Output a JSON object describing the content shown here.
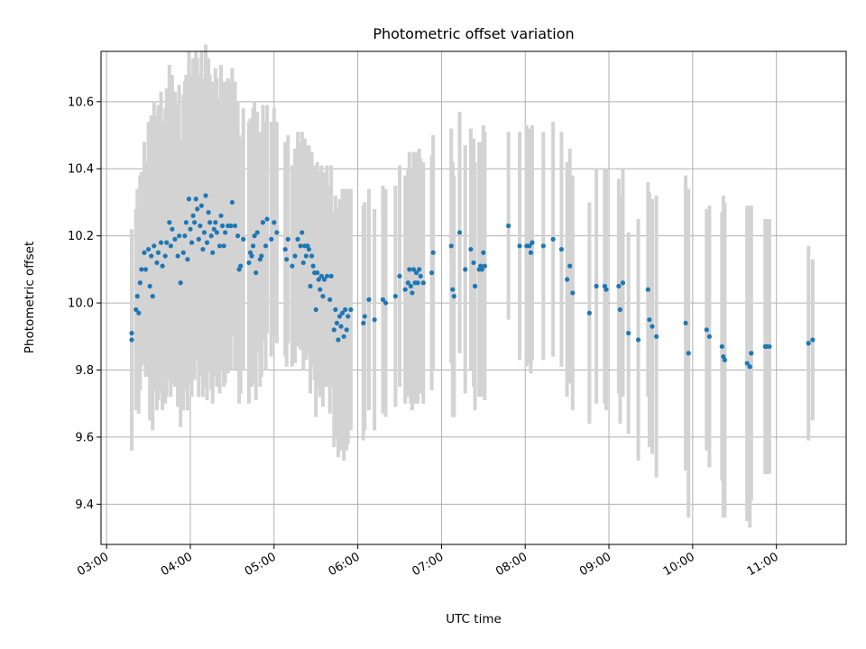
{
  "chart_data": {
    "type": "scatter",
    "title": "Photometric offset variation",
    "xlabel": "UTC time",
    "ylabel": "Photometric offset",
    "x_unit": "UTC time of day",
    "xlim": [
      "02:56",
      "11:50"
    ],
    "ylim": [
      9.28,
      10.75
    ],
    "x_ticks": [
      "03:00",
      "04:00",
      "05:00",
      "06:00",
      "07:00",
      "08:00",
      "09:00",
      "10:00",
      "11:00"
    ],
    "y_ticks": [
      9.4,
      9.6,
      9.8,
      10.0,
      10.2,
      10.4,
      10.6
    ],
    "y_tick_labels": [
      "9.4",
      "9.6",
      "9.8",
      "10.0",
      "10.2",
      "10.4",
      "10.6"
    ],
    "x_tick_rotation_deg": 30,
    "grid": true,
    "colors": {
      "points": "#1f77b4",
      "errorbars": "#d3d3d3",
      "grid": "#b0b0b0"
    },
    "series": [
      {
        "columns": [
          "time",
          "offset",
          "error"
        ],
        "points": [
          [
            "03:18",
            9.89,
            0.33
          ],
          [
            "03:18",
            9.91,
            0.3
          ],
          [
            "03:21",
            9.98,
            0.3
          ],
          [
            "03:22",
            10.02,
            0.32
          ],
          [
            "03:23",
            9.97,
            0.3
          ],
          [
            "03:24",
            10.06,
            0.32
          ],
          [
            "03:25",
            10.1,
            0.29
          ],
          [
            "03:27",
            10.15,
            0.33
          ],
          [
            "03:28",
            10.1,
            0.32
          ],
          [
            "03:30",
            10.16,
            0.38
          ],
          [
            "03:31",
            10.05,
            0.4
          ],
          [
            "03:32",
            10.14,
            0.42
          ],
          [
            "03:33",
            10.02,
            0.4
          ],
          [
            "03:34",
            10.17,
            0.43
          ],
          [
            "03:36",
            10.12,
            0.44
          ],
          [
            "03:37",
            10.15,
            0.44
          ],
          [
            "03:39",
            10.18,
            0.45
          ],
          [
            "03:40",
            10.11,
            0.43
          ],
          [
            "03:42",
            10.14,
            0.44
          ],
          [
            "03:43",
            10.18,
            0.46
          ],
          [
            "03:45",
            10.24,
            0.47
          ],
          [
            "03:46",
            10.17,
            0.45
          ],
          [
            "03:47",
            10.22,
            0.46
          ],
          [
            "03:49",
            10.19,
            0.44
          ],
          [
            "03:51",
            10.14,
            0.45
          ],
          [
            "03:52",
            10.2,
            0.45
          ],
          [
            "03:53",
            10.06,
            0.43
          ],
          [
            "03:55",
            10.15,
            0.47
          ],
          [
            "03:56",
            10.2,
            0.46
          ],
          [
            "03:57",
            10.24,
            0.44
          ],
          [
            "03:58",
            10.13,
            0.45
          ],
          [
            "03:59",
            10.31,
            0.44
          ],
          [
            "04:00",
            10.22,
            0.46
          ],
          [
            "04:01",
            10.18,
            0.46
          ],
          [
            "04:02",
            10.26,
            0.47
          ],
          [
            "04:03",
            10.24,
            0.47
          ],
          [
            "04:04",
            10.31,
            0.44
          ],
          [
            "04:05",
            10.28,
            0.45
          ],
          [
            "04:06",
            10.19,
            0.47
          ],
          [
            "04:07",
            10.23,
            0.45
          ],
          [
            "04:08",
            10.29,
            0.46
          ],
          [
            "04:09",
            10.16,
            0.44
          ],
          [
            "04:10",
            10.21,
            0.46
          ],
          [
            "04:11",
            10.32,
            0.45
          ],
          [
            "04:12",
            10.18,
            0.47
          ],
          [
            "04:13",
            10.27,
            0.46
          ],
          [
            "04:14",
            10.24,
            0.44
          ],
          [
            "04:15",
            10.2,
            0.46
          ],
          [
            "04:16",
            10.15,
            0.45
          ],
          [
            "04:17",
            10.22,
            0.44
          ],
          [
            "04:18",
            10.24,
            0.46
          ],
          [
            "04:19",
            10.21,
            0.46
          ],
          [
            "04:21",
            10.17,
            0.44
          ],
          [
            "04:22",
            10.26,
            0.45
          ],
          [
            "04:23",
            10.23,
            0.43
          ],
          [
            "04:24",
            10.17,
            0.42
          ],
          [
            "04:25",
            10.21,
            0.45
          ],
          [
            "04:27",
            10.23,
            0.44
          ],
          [
            "04:29",
            10.23,
            0.43
          ],
          [
            "04:30",
            10.3,
            0.4
          ],
          [
            "04:32",
            10.23,
            0.43
          ],
          [
            "04:34",
            10.2,
            0.4
          ],
          [
            "04:35",
            10.1,
            0.4
          ],
          [
            "04:36",
            10.11,
            0.38
          ],
          [
            "04:38",
            10.19,
            0.39
          ],
          [
            "04:42",
            10.12,
            0.42
          ],
          [
            "04:43",
            10.15,
            0.4
          ],
          [
            "04:44",
            10.14,
            0.39
          ],
          [
            "04:45",
            10.17,
            0.41
          ],
          [
            "04:46",
            10.2,
            0.4
          ],
          [
            "04:47",
            10.09,
            0.38
          ],
          [
            "04:48",
            10.21,
            0.36
          ],
          [
            "04:50",
            10.13,
            0.38
          ],
          [
            "04:51",
            10.14,
            0.36
          ],
          [
            "04:52",
            10.24,
            0.35
          ],
          [
            "04:54",
            10.17,
            0.37
          ],
          [
            "04:55",
            10.25,
            0.34
          ],
          [
            "04:58",
            10.19,
            0.35
          ],
          [
            "05:00",
            10.24,
            0.34
          ],
          [
            "05:02",
            10.21,
            0.33
          ],
          [
            "05:08",
            10.16,
            0.32
          ],
          [
            "05:09",
            10.13,
            0.32
          ],
          [
            "05:10",
            10.19,
            0.31
          ],
          [
            "05:13",
            10.11,
            0.3
          ],
          [
            "05:15",
            10.14,
            0.32
          ],
          [
            "05:17",
            10.19,
            0.32
          ],
          [
            "05:19",
            10.17,
            0.31
          ],
          [
            "05:20",
            10.21,
            0.3
          ],
          [
            "05:21",
            10.12,
            0.32
          ],
          [
            "05:22",
            10.17,
            0.32
          ],
          [
            "05:23",
            10.14,
            0.31
          ],
          [
            "05:24",
            10.17,
            0.3
          ],
          [
            "05:25",
            10.16,
            0.31
          ],
          [
            "05:26",
            10.05,
            0.32
          ],
          [
            "05:27",
            10.14,
            0.31
          ],
          [
            "05:28",
            10.11,
            0.3
          ],
          [
            "05:29",
            10.09,
            0.32
          ],
          [
            "05:30",
            9.98,
            0.32
          ],
          [
            "05:31",
            10.09,
            0.33
          ],
          [
            "05:32",
            10.07,
            0.32
          ],
          [
            "05:33",
            10.04,
            0.32
          ],
          [
            "05:34",
            10.08,
            0.33
          ],
          [
            "05:35",
            10.02,
            0.33
          ],
          [
            "05:36",
            10.07,
            0.32
          ],
          [
            "05:38",
            10.08,
            0.33
          ],
          [
            "05:40",
            10.01,
            0.34
          ],
          [
            "05:41",
            10.08,
            0.33
          ],
          [
            "05:43",
            9.92,
            0.35
          ],
          [
            "05:44",
            9.98,
            0.34
          ],
          [
            "05:45",
            9.94,
            0.34
          ],
          [
            "05:46",
            9.89,
            0.35
          ],
          [
            "05:47",
            9.96,
            0.35
          ],
          [
            "05:48",
            9.93,
            0.37
          ],
          [
            "05:49",
            9.97,
            0.37
          ],
          [
            "05:50",
            9.9,
            0.37
          ],
          [
            "05:51",
            9.98,
            0.36
          ],
          [
            "05:52",
            9.92,
            0.36
          ],
          [
            "05:53",
            9.96,
            0.38
          ],
          [
            "05:55",
            9.98,
            0.36
          ],
          [
            "06:04",
            9.94,
            0.35
          ],
          [
            "06:05",
            9.96,
            0.34
          ],
          [
            "06:08",
            10.01,
            0.33
          ],
          [
            "06:12",
            9.95,
            0.33
          ],
          [
            "06:18",
            10.01,
            0.34
          ],
          [
            "06:20",
            10.0,
            0.34
          ],
          [
            "06:27",
            10.02,
            0.33
          ],
          [
            "06:30",
            10.08,
            0.33
          ],
          [
            "06:34",
            10.04,
            0.34
          ],
          [
            "06:36",
            10.06,
            0.34
          ],
          [
            "06:37",
            10.1,
            0.35
          ],
          [
            "06:38",
            10.05,
            0.35
          ],
          [
            "06:39",
            10.03,
            0.35
          ],
          [
            "06:40",
            10.1,
            0.35
          ],
          [
            "06:41",
            10.06,
            0.36
          ],
          [
            "06:42",
            10.09,
            0.36
          ],
          [
            "06:43",
            10.06,
            0.36
          ],
          [
            "06:44",
            10.1,
            0.36
          ],
          [
            "06:45",
            10.08,
            0.35
          ],
          [
            "06:47",
            10.06,
            0.36
          ],
          [
            "06:53",
            10.09,
            0.35
          ],
          [
            "06:54",
            10.15,
            0.35
          ],
          [
            "07:07",
            10.17,
            0.35
          ],
          [
            "07:08",
            10.04,
            0.38
          ],
          [
            "07:09",
            10.02,
            0.36
          ],
          [
            "07:13",
            10.21,
            0.36
          ],
          [
            "07:17",
            10.1,
            0.37
          ],
          [
            "07:21",
            10.16,
            0.36
          ],
          [
            "07:23",
            10.12,
            0.37
          ],
          [
            "07:24",
            10.05,
            0.37
          ],
          [
            "07:27",
            10.1,
            0.38
          ],
          [
            "07:28",
            10.11,
            0.37
          ],
          [
            "07:29",
            10.1,
            0.38
          ],
          [
            "07:30",
            10.15,
            0.38
          ],
          [
            "07:31",
            10.11,
            0.4
          ],
          [
            "07:48",
            10.23,
            0.28
          ],
          [
            "07:56",
            10.17,
            0.34
          ],
          [
            "08:01",
            10.17,
            0.36
          ],
          [
            "08:03",
            10.17,
            0.35
          ],
          [
            "08:04",
            10.15,
            0.36
          ],
          [
            "08:05",
            10.18,
            0.35
          ],
          [
            "08:13",
            10.17,
            0.34
          ],
          [
            "08:20",
            10.19,
            0.35
          ],
          [
            "08:26",
            10.16,
            0.35
          ],
          [
            "08:30",
            10.07,
            0.35
          ],
          [
            "08:32",
            10.11,
            0.35
          ],
          [
            "08:34",
            10.03,
            0.35
          ],
          [
            "08:46",
            9.97,
            0.33
          ],
          [
            "08:51",
            10.05,
            0.35
          ],
          [
            "08:57",
            10.05,
            0.35
          ],
          [
            "08:58",
            10.04,
            0.36
          ],
          [
            "09:07",
            10.05,
            0.32
          ],
          [
            "09:08",
            9.98,
            0.34
          ],
          [
            "09:10",
            10.06,
            0.34
          ],
          [
            "09:14",
            9.91,
            0.3
          ],
          [
            "09:21",
            9.89,
            0.36
          ],
          [
            "09:28",
            10.04,
            0.32
          ],
          [
            "09:29",
            9.95,
            0.38
          ],
          [
            "09:31",
            9.93,
            0.38
          ],
          [
            "09:34",
            9.9,
            0.42
          ],
          [
            "09:55",
            9.94,
            0.44
          ],
          [
            "09:57",
            9.85,
            0.49
          ],
          [
            "10:10",
            9.92,
            0.36
          ],
          [
            "10:12",
            9.9,
            0.39
          ],
          [
            "10:21",
            9.87,
            0.4
          ],
          [
            "10:22",
            9.84,
            0.48
          ],
          [
            "10:23",
            9.83,
            0.47
          ],
          [
            "10:39",
            9.82,
            0.47
          ],
          [
            "10:41",
            9.81,
            0.48
          ],
          [
            "10:42",
            9.85,
            0.44
          ],
          [
            "10:52",
            9.87,
            0.38
          ],
          [
            "10:53",
            9.87,
            0.38
          ],
          [
            "10:55",
            9.87,
            0.38
          ],
          [
            "11:23",
            9.88,
            0.29
          ],
          [
            "11:26",
            9.89,
            0.24
          ]
        ]
      }
    ]
  }
}
